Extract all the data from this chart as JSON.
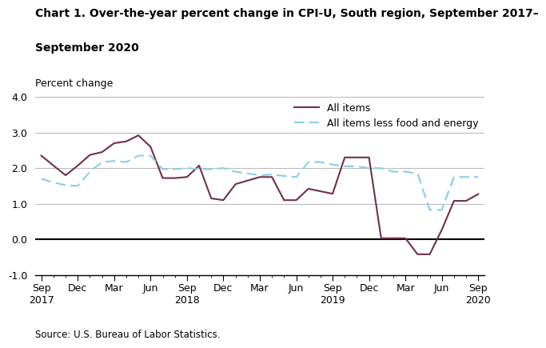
{
  "title_line1": "Chart 1. Over-the-year percent change in CPI-U, South region, September 2017–",
  "title_line2": "September 2020",
  "ylabel": "Percent change",
  "source": "Source: U.S. Bureau of Labor Statistics.",
  "ylim": [
    -1.0,
    4.0
  ],
  "yticks": [
    -1.0,
    0.0,
    1.0,
    2.0,
    3.0,
    4.0
  ],
  "ytick_labels": [
    "-1.0",
    "0.0",
    "1.0",
    "2.0",
    "3.0",
    "4.0"
  ],
  "xtick_positions": [
    0,
    3,
    6,
    9,
    12,
    15,
    18,
    21,
    24,
    27,
    30,
    33,
    36
  ],
  "xtick_labels": [
    "Sep\n2017",
    "Dec",
    "Mar",
    "Jun",
    "Sep\n2018",
    "Dec",
    "Mar",
    "Jun",
    "Sep\n2019",
    "Dec",
    "Mar",
    "Jun",
    "Sep\n2020"
  ],
  "all_items": [
    2.35,
    2.07,
    1.8,
    2.07,
    2.37,
    2.45,
    2.7,
    2.75,
    2.92,
    2.6,
    1.72,
    1.72,
    1.75,
    2.07,
    1.15,
    1.1,
    1.55,
    1.65,
    1.75,
    1.75,
    1.1,
    1.1,
    1.42,
    1.35,
    1.28,
    2.3,
    2.3,
    2.3,
    0.03,
    0.03,
    0.03,
    -0.42,
    -0.42,
    0.27,
    1.08,
    1.08,
    1.27
  ],
  "core_items": [
    1.7,
    1.6,
    1.52,
    1.5,
    1.9,
    2.17,
    2.2,
    2.17,
    2.35,
    2.35,
    1.97,
    1.97,
    2.0,
    1.97,
    1.97,
    2.0,
    1.9,
    1.85,
    1.8,
    1.82,
    1.78,
    1.75,
    2.17,
    2.17,
    2.1,
    2.05,
    2.05,
    2.0,
    2.0,
    1.9,
    1.9,
    1.85,
    0.83,
    0.83,
    1.75,
    1.75,
    1.75
  ],
  "all_items_color": "#722F4A",
  "core_items_color": "#87CEEB",
  "all_items_label": "All items",
  "core_items_label": "All items less food and energy",
  "grid_color": "#bbbbbb",
  "title_fontsize": 10,
  "label_fontsize": 9,
  "source_fontsize": 8.5
}
